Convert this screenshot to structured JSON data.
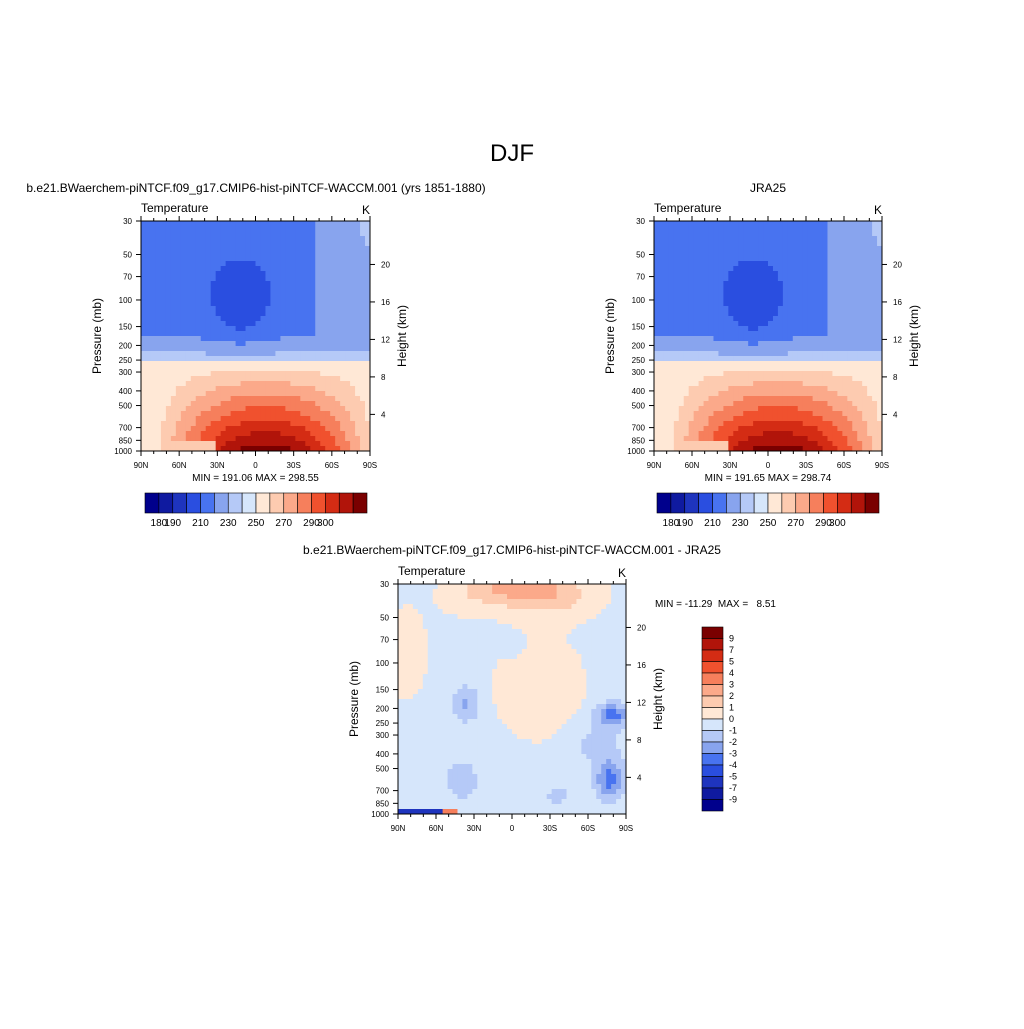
{
  "page": {
    "title": "DJF"
  },
  "palettes": {
    "abs": [
      "#00008c",
      "#0f1aa0",
      "#1e34be",
      "#2a4ee0",
      "#4873f0",
      "#88a4ee",
      "#b5c9f7",
      "#d6e6fb",
      "#ffe8d6",
      "#fdcbb0",
      "#fba98a",
      "#f67f5c",
      "#f0512e",
      "#d42c14",
      "#b1140a",
      "#7a0000"
    ],
    "diff": [
      "#00008c",
      "#0f1aa0",
      "#1e34be",
      "#2a4ee0",
      "#4873f0",
      "#88a4ee",
      "#b5c9f7",
      "#d6e6fb",
      "#ffe8d6",
      "#fdcbb0",
      "#fba98a",
      "#f67f5c",
      "#f0512e",
      "#d42c14",
      "#b1140a",
      "#7a0000"
    ]
  },
  "chart_data": [
    {
      "id": "model",
      "type": "heatmap",
      "title": "b.e21.BWaerchem-piNTCF.f09_g17.CMIP6-hist-piNTCF-WACCM.001 (yrs 1851-1880)",
      "left_string": "Temperature",
      "right_string": "K",
      "ylabel": "Pressure (mb)",
      "y2label": "Height (km)",
      "x_ticks": [
        "90N",
        "60N",
        "30N",
        "0",
        "30S",
        "60S",
        "90S"
      ],
      "y_ticks": [
        "30",
        "50",
        "70",
        "100",
        "150",
        "200",
        "250",
        "300",
        "400",
        "500",
        "700",
        "850",
        "1000"
      ],
      "y2_ticks": [
        "20",
        "16",
        "12",
        "8",
        "4"
      ],
      "stats": "MIN = 191.06  MAX = 298.55",
      "colorbar": {
        "orientation": "horizontal",
        "labels": [
          "180",
          "190",
          "210",
          "230",
          "250",
          "270",
          "290",
          "300"
        ]
      }
    },
    {
      "id": "obs",
      "type": "heatmap",
      "title": "JRA25",
      "left_string": "Temperature",
      "right_string": "K",
      "ylabel": "Pressure (mb)",
      "y2label": "Height (km)",
      "x_ticks": [
        "90N",
        "60N",
        "30N",
        "0",
        "30S",
        "60S",
        "90S"
      ],
      "y_ticks": [
        "30",
        "50",
        "70",
        "100",
        "150",
        "200",
        "250",
        "300",
        "400",
        "500",
        "700",
        "850",
        "1000"
      ],
      "y2_ticks": [
        "20",
        "16",
        "12",
        "8",
        "4"
      ],
      "stats": "MIN = 191.65  MAX = 298.74",
      "colorbar": {
        "orientation": "horizontal",
        "labels": [
          "180",
          "190",
          "210",
          "230",
          "250",
          "270",
          "290",
          "300"
        ]
      }
    },
    {
      "id": "diff",
      "type": "heatmap",
      "title": "b.e21.BWaerchem-piNTCF.f09_g17.CMIP6-hist-piNTCF-WACCM.001 - JRA25",
      "left_string": "Temperature",
      "right_string": "K",
      "ylabel": "Pressure (mb)",
      "y2label": "Height (km)",
      "x_ticks": [
        "90N",
        "60N",
        "30N",
        "0",
        "30S",
        "60S",
        "90S"
      ],
      "y_ticks": [
        "30",
        "50",
        "70",
        "100",
        "150",
        "200",
        "250",
        "300",
        "400",
        "500",
        "700",
        "850",
        "1000"
      ],
      "y2_ticks": [
        "20",
        "16",
        "12",
        "8",
        "4"
      ],
      "stats": "MIN = -11.29  MAX =   8.51",
      "colorbar": {
        "orientation": "vertical",
        "labels": [
          "9",
          "7",
          "5",
          "4",
          "3",
          "2",
          "1",
          "0",
          "-1",
          "-2",
          "-3",
          "-4",
          "-5",
          "-7",
          "-9"
        ]
      }
    }
  ]
}
